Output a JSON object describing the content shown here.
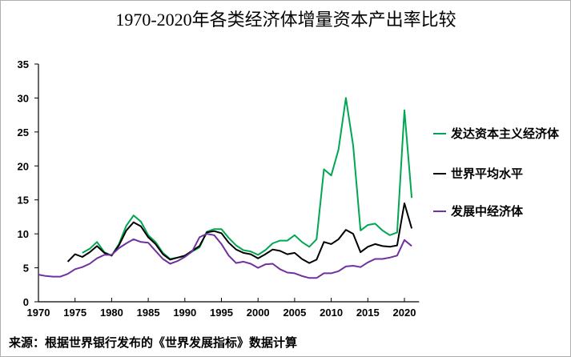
{
  "chart_data": {
    "type": "line",
    "title": "1970-2020年各类经济体增量资本产出率比较",
    "xlabel": "",
    "ylabel": "",
    "xlim": [
      1970,
      2022
    ],
    "ylim": [
      0,
      35
    ],
    "x_ticks": [
      1970,
      1975,
      1980,
      1985,
      1990,
      1995,
      2000,
      2005,
      2010,
      2015,
      2020
    ],
    "y_ticks": [
      0,
      5,
      10,
      15,
      20,
      25,
      30,
      35
    ],
    "grid": false,
    "legend_position": "right",
    "source": "来源：根据世界银行发布的《世界发展指标》数据计算",
    "series": [
      {
        "name": "发达资本主义经济体",
        "color": "#00a651",
        "start": 1976,
        "values": [
          7.2,
          7.8,
          8.8,
          7.3,
          6.8,
          8.5,
          11.2,
          12.7,
          11.8,
          9.8,
          8.8,
          7.2,
          6.3,
          6.5,
          6.7,
          7.4,
          8.0,
          10.3,
          10.7,
          10.7,
          9.4,
          8.3,
          7.6,
          7.4,
          6.9,
          7.6,
          8.6,
          9.0,
          9.0,
          9.8,
          8.8,
          8.1,
          9.2,
          19.5,
          18.6,
          22.4,
          30.0,
          23.0,
          10.5,
          11.3,
          11.5,
          10.5,
          9.8,
          10.2,
          28.2,
          15.3
        ]
      },
      {
        "name": "世界平均水平",
        "color": "#000000",
        "start": 1974,
        "values": [
          5.9,
          7.0,
          6.6,
          7.3,
          8.2,
          7.2,
          6.8,
          8.3,
          10.5,
          11.7,
          11.1,
          9.5,
          8.5,
          7.0,
          6.2,
          6.5,
          6.8,
          7.5,
          8.2,
          10.2,
          10.4,
          10.1,
          8.7,
          7.7,
          7.2,
          7.0,
          6.4,
          7.0,
          7.7,
          7.5,
          7.0,
          7.2,
          6.3,
          5.7,
          6.2,
          8.8,
          8.5,
          9.2,
          10.6,
          10.0,
          7.3,
          8.1,
          8.5,
          8.2,
          8.1,
          8.3,
          14.5,
          10.8
        ]
      },
      {
        "name": "发展中经济体",
        "color": "#7030a0",
        "start": 1970,
        "values": [
          4.0,
          3.8,
          3.7,
          3.7,
          4.1,
          4.8,
          5.1,
          5.6,
          6.4,
          6.9,
          6.9,
          7.9,
          8.6,
          9.2,
          8.8,
          8.7,
          7.5,
          6.3,
          5.6,
          6.0,
          6.6,
          7.4,
          9.5,
          10.0,
          9.8,
          8.5,
          6.8,
          5.7,
          5.9,
          5.6,
          5.0,
          5.5,
          5.6,
          4.8,
          4.3,
          4.2,
          3.8,
          3.5,
          3.5,
          4.2,
          4.2,
          4.5,
          5.2,
          5.3,
          5.1,
          5.8,
          6.3,
          6.3,
          6.5,
          6.8,
          9.1,
          8.2
        ]
      }
    ]
  }
}
